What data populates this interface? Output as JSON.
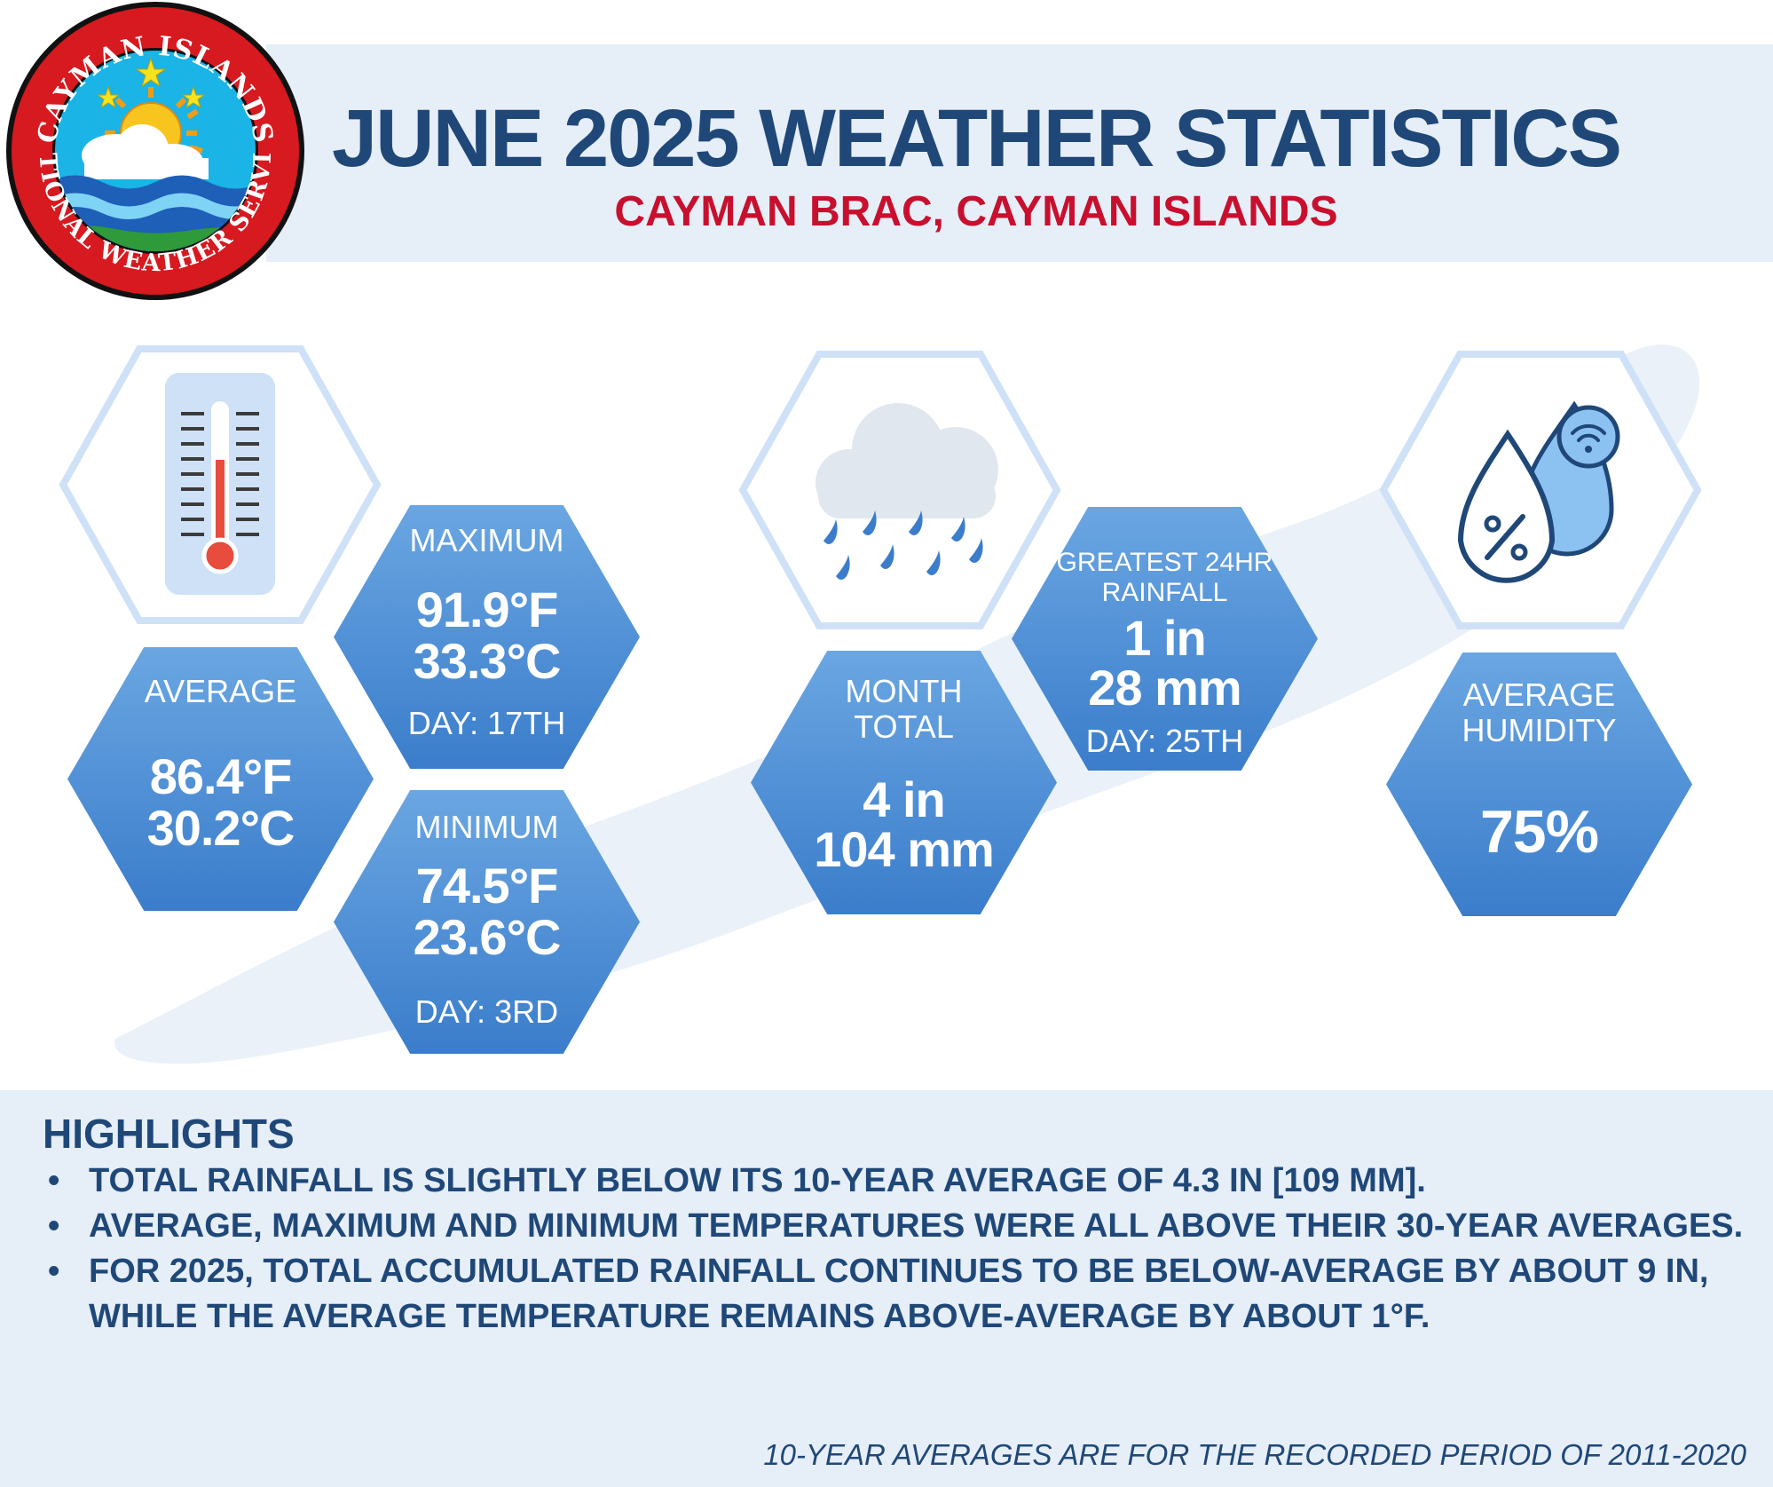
{
  "header": {
    "title": "JUNE 2025 WEATHER STATISTICS",
    "subtitle": "CAYMAN BRAC, CAYMAN ISLANDS"
  },
  "logo": {
    "text_top": "CAYMAN ISLANDS",
    "text_bottom": "NATIONAL WEATHER SERVICE"
  },
  "temperature": {
    "icon": "thermometer-icon",
    "average": {
      "label": "AVERAGE",
      "f": "86.4°F",
      "c": "30.2°C"
    },
    "maximum": {
      "label": "MAXIMUM",
      "f": "91.9°F",
      "c": "33.3°C",
      "day": "DAY: 17TH"
    },
    "minimum": {
      "label": "MINIMUM",
      "f": "74.5°F",
      "c": "23.6°C",
      "day": "DAY: 3RD"
    }
  },
  "rainfall": {
    "icon": "rain-cloud-icon",
    "month_total": {
      "label_1": "MONTH",
      "label_2": "TOTAL",
      "in": "4 in",
      "mm": "104 mm"
    },
    "greatest_24hr": {
      "label_1": "GREATEST 24HR",
      "label_2": "RAINFALL",
      "in": "1 in",
      "mm": "28 mm",
      "day": "DAY: 25TH"
    }
  },
  "humidity": {
    "icon": "humidity-drops-icon",
    "label_1": "AVERAGE",
    "label_2": "HUMIDITY",
    "value": "75%"
  },
  "highlights": {
    "title": "HIGHLIGHTS",
    "items": [
      "TOTAL RAINFALL IS SLIGHTLY BELOW ITS 10-YEAR AVERAGE OF 4.3 IN [109 MM].",
      "AVERAGE, MAXIMUM AND MINIMUM TEMPERATURES WERE ALL ABOVE THEIR 30-YEAR AVERAGES.",
      "FOR 2025, TOTAL ACCUMULATED RAINFALL CONTINUES TO BE BELOW-AVERAGE BY ABOUT 9 IN, WHILE THE AVERAGE TEMPERATURE REMAINS ABOVE-AVERAGE BY ABOUT 1°F."
    ]
  },
  "footnote": "10-YEAR AVERAGES ARE FOR THE RECORDED PERIOD OF 2011-2020",
  "colors": {
    "navy": "#1f4878",
    "red": "#c8102e",
    "hex_blue": "#3b7dcb",
    "band": "#e6eef8"
  }
}
